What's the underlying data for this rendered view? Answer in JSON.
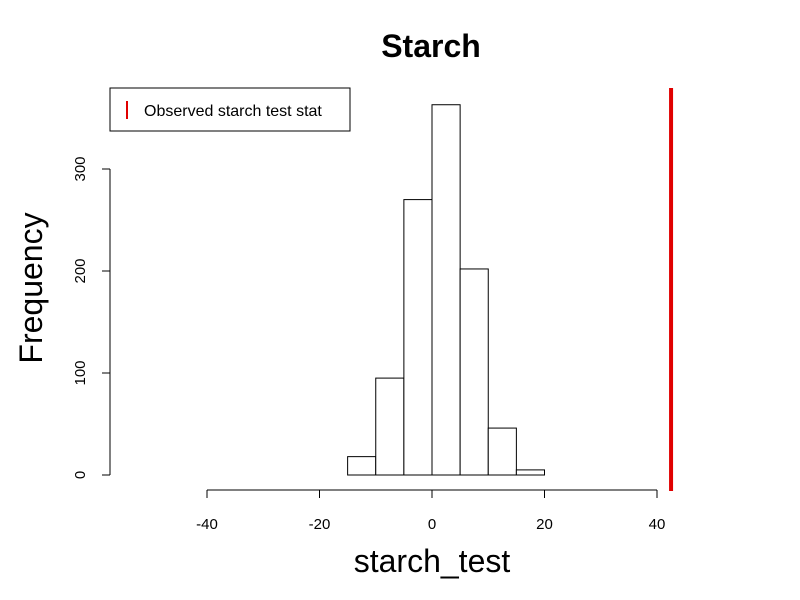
{
  "chart_data": {
    "type": "bar",
    "title": "Starch",
    "xlabel": "starch_test",
    "ylabel": "Frequency",
    "xlim": [
      -45,
      43
    ],
    "ylim": [
      0,
      360
    ],
    "x_ticks": [
      -40,
      -20,
      0,
      20,
      40
    ],
    "y_ticks": [
      0,
      100,
      200,
      300
    ],
    "bins": [
      {
        "from": -15,
        "to": -10,
        "count": 18
      },
      {
        "from": -10,
        "to": -5,
        "count": 95
      },
      {
        "from": -5,
        "to": 0,
        "count": 270
      },
      {
        "from": 0,
        "to": 5,
        "count": 363
      },
      {
        "from": 5,
        "to": 10,
        "count": 202
      },
      {
        "from": 10,
        "to": 15,
        "count": 46
      },
      {
        "from": 15,
        "to": 20,
        "count": 5
      }
    ],
    "observed_value": 42.5,
    "observed_color": "#e00000",
    "bar_fill": "#ffffff",
    "bar_stroke": "#000000",
    "legend": {
      "position": "top-left",
      "entries": [
        {
          "label": "Observed starch test stat",
          "color": "#e00000"
        }
      ]
    },
    "grid": false
  }
}
